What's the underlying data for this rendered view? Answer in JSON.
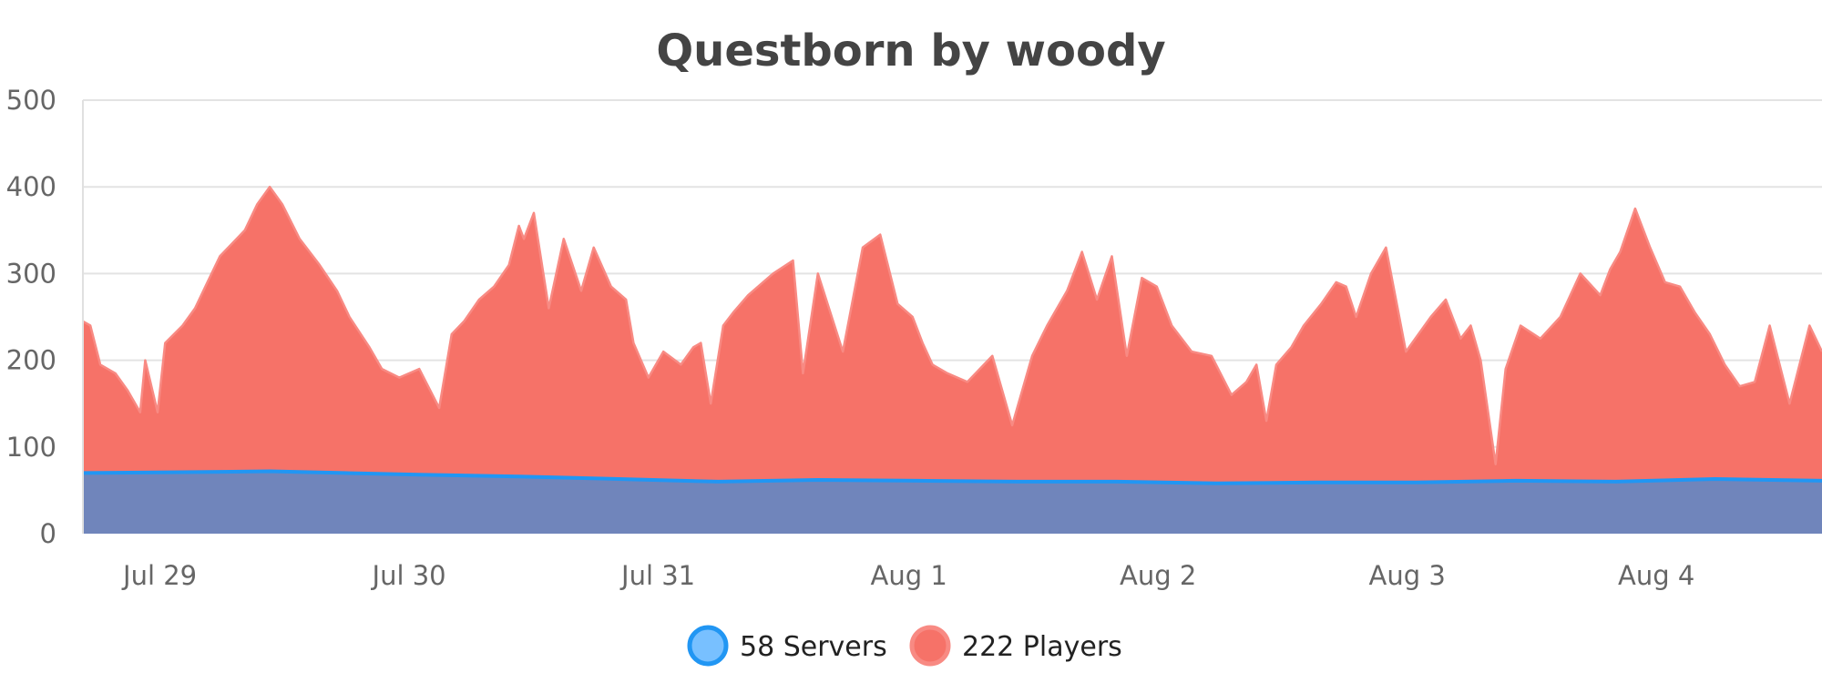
{
  "chart_data": {
    "type": "area",
    "title": "Questborn by woody",
    "xlabel": "",
    "ylabel": "",
    "ylim": [
      0,
      500
    ],
    "y_ticks": [
      "0",
      "100",
      "200",
      "300",
      "400",
      "500"
    ],
    "x_ticks": [
      "Jul 29",
      "Jul 30",
      "Jul 31",
      "Aug 1",
      "Aug 2",
      "Aug 3",
      "Aug 4"
    ],
    "x_tick_days": [
      0,
      1,
      2,
      3,
      4,
      5,
      6
    ],
    "x_range_days": [
      -0.15,
      6.83
    ],
    "grid": true,
    "legend_position": "bottom",
    "series": [
      {
        "name": "Servers",
        "legend_label": "58 Servers",
        "color": "#2196f3",
        "fill": "#7085bb",
        "legend_fill": "#78c0ff",
        "x": [
          -0.15,
          0.3,
          0.6,
          0.9,
          1.2,
          1.6,
          2.0,
          2.4,
          2.8,
          3.2,
          3.6,
          4.0,
          4.4,
          4.8,
          5.2,
          5.6,
          6.0,
          6.4,
          6.83
        ],
        "y": [
          70,
          71,
          72,
          70,
          68,
          66,
          63,
          60,
          62,
          61,
          60,
          60,
          58,
          59,
          59,
          61,
          60,
          63,
          61
        ]
      },
      {
        "name": "Players",
        "legend_label": "222 Players",
        "color": "#f88a83",
        "fill": "#f67268",
        "legend_fill": "#f67268",
        "x": [
          -0.15,
          -0.12,
          -0.08,
          -0.02,
          0.03,
          0.08,
          0.1,
          0.15,
          0.18,
          0.25,
          0.3,
          0.35,
          0.4,
          0.45,
          0.5,
          0.55,
          0.6,
          0.65,
          0.72,
          0.8,
          0.87,
          0.92,
          1.0,
          1.05,
          1.12,
          1.2,
          1.28,
          1.33,
          1.38,
          1.44,
          1.5,
          1.56,
          1.6,
          1.62,
          1.66,
          1.72,
          1.78,
          1.85,
          1.9,
          1.97,
          2.03,
          2.06,
          2.12,
          2.18,
          2.25,
          2.3,
          2.33,
          2.37,
          2.42,
          2.46,
          2.52,
          2.58,
          2.62,
          2.7,
          2.74,
          2.8,
          2.9,
          2.98,
          3.05,
          3.12,
          3.18,
          3.22,
          3.26,
          3.32,
          3.4,
          3.5,
          3.58,
          3.66,
          3.72,
          3.8,
          3.86,
          3.92,
          3.98,
          4.04,
          4.1,
          4.16,
          4.22,
          4.3,
          4.38,
          4.46,
          4.52,
          4.56,
          4.6,
          4.64,
          4.7,
          4.75,
          4.82,
          4.88,
          4.92,
          4.96,
          5.02,
          5.08,
          5.16,
          5.26,
          5.32,
          5.38,
          5.42,
          5.46,
          5.52,
          5.56,
          5.62,
          5.7,
          5.78,
          5.86,
          5.94,
          5.98,
          6.02,
          6.08,
          6.14,
          6.2,
          6.26,
          6.32,
          6.38,
          6.44,
          6.5,
          6.56,
          6.62,
          6.7,
          6.78,
          6.83
        ],
        "y": [
          245,
          240,
          195,
          185,
          165,
          140,
          200,
          140,
          220,
          240,
          260,
          290,
          320,
          335,
          350,
          380,
          400,
          380,
          340,
          310,
          280,
          250,
          215,
          190,
          180,
          190,
          145,
          230,
          245,
          270,
          285,
          310,
          355,
          340,
          370,
          260,
          340,
          280,
          330,
          285,
          270,
          220,
          180,
          210,
          195,
          215,
          220,
          150,
          240,
          255,
          275,
          290,
          300,
          315,
          185,
          300,
          210,
          330,
          345,
          265,
          250,
          220,
          195,
          185,
          175,
          205,
          125,
          205,
          240,
          280,
          325,
          270,
          320,
          205,
          295,
          285,
          240,
          210,
          205,
          160,
          175,
          195,
          130,
          195,
          215,
          240,
          265,
          290,
          285,
          250,
          300,
          330,
          210,
          250,
          270,
          225,
          240,
          200,
          80,
          190,
          240,
          225,
          250,
          300,
          275,
          305,
          325,
          375,
          330,
          290,
          285,
          255,
          230,
          195,
          170,
          175,
          240,
          150,
          240,
          210
        ]
      }
    ]
  }
}
